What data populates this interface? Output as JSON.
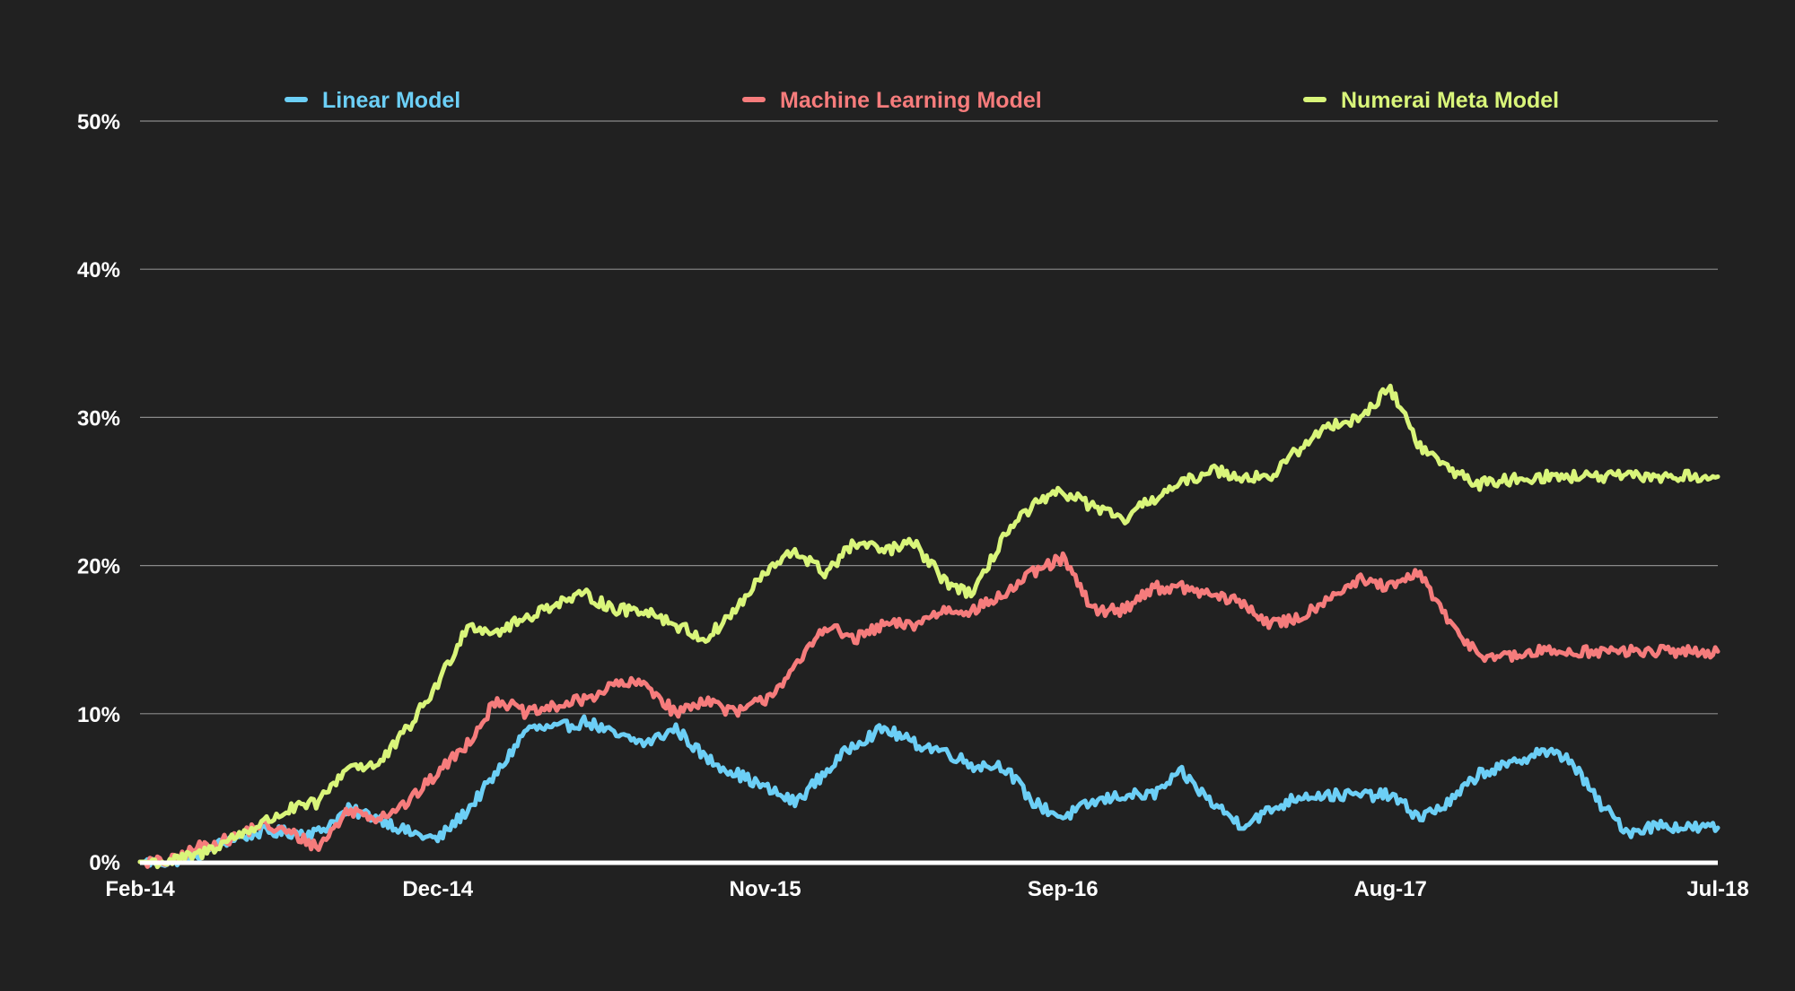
{
  "chart_data": {
    "type": "line",
    "title": "",
    "xlabel": "",
    "ylabel": "",
    "ylim": [
      0,
      50
    ],
    "yticks": [
      0,
      10,
      20,
      30,
      40,
      50
    ],
    "ytick_labels": [
      "0%",
      "10%",
      "20%",
      "30%",
      "40%",
      "50%"
    ],
    "xlim": [
      "2014-02",
      "2018-07"
    ],
    "xticks": [
      "2014-02",
      "2014-12",
      "2015-11",
      "2016-09",
      "2017-08",
      "2018-07"
    ],
    "xtick_labels": [
      "Feb-14",
      "Dec-14",
      "Nov-15",
      "Sep-16",
      "Aug-17",
      "Jul-18"
    ],
    "grid": true,
    "legend_position": "top",
    "series": [
      {
        "name": "Linear Model",
        "color": "#6ccff6",
        "x": [
          "2014-02",
          "2014-03",
          "2014-04",
          "2014-05",
          "2014-06",
          "2014-07",
          "2014-08",
          "2014-09",
          "2014-10",
          "2014-11",
          "2014-12",
          "2015-01",
          "2015-02",
          "2015-03",
          "2015-04",
          "2015-05",
          "2015-06",
          "2015-07",
          "2015-08",
          "2015-09",
          "2015-10",
          "2015-11",
          "2015-12",
          "2016-01",
          "2016-02",
          "2016-03",
          "2016-04",
          "2016-05",
          "2016-06",
          "2016-07",
          "2016-08",
          "2016-09",
          "2016-10",
          "2016-11",
          "2016-12",
          "2017-01",
          "2017-02",
          "2017-03",
          "2017-04",
          "2017-05",
          "2017-06",
          "2017-07",
          "2017-08",
          "2017-09",
          "2017-10",
          "2017-11",
          "2017-12",
          "2018-01",
          "2018-02",
          "2018-03",
          "2018-04",
          "2018-05",
          "2018-06",
          "2018-07"
        ],
        "values": [
          0,
          0,
          0.5,
          1.5,
          2,
          2,
          2,
          3.5,
          3,
          2,
          1.5,
          3.5,
          6,
          9,
          9,
          9.5,
          8.5,
          8,
          9,
          7,
          6,
          5,
          4,
          6,
          8,
          9,
          8,
          7.5,
          6.5,
          6.5,
          4,
          3,
          4,
          4.5,
          4.5,
          6,
          4,
          2.5,
          3.5,
          4.5,
          4.5,
          4.5,
          4.5,
          3,
          4,
          6,
          6.5,
          7.5,
          7,
          4,
          2,
          2.5,
          2.3,
          2.3
        ]
      },
      {
        "name": "Machine Learning Model",
        "color": "#f67c7c",
        "x": [
          "2014-02",
          "2014-03",
          "2014-04",
          "2014-05",
          "2014-06",
          "2014-07",
          "2014-08",
          "2014-09",
          "2014-10",
          "2014-11",
          "2014-12",
          "2015-01",
          "2015-02",
          "2015-03",
          "2015-04",
          "2015-05",
          "2015-06",
          "2015-07",
          "2015-08",
          "2015-09",
          "2015-10",
          "2015-11",
          "2015-12",
          "2016-01",
          "2016-02",
          "2016-03",
          "2016-04",
          "2016-05",
          "2016-06",
          "2016-07",
          "2016-08",
          "2016-09",
          "2016-10",
          "2016-11",
          "2016-12",
          "2017-01",
          "2017-02",
          "2017-03",
          "2017-04",
          "2017-05",
          "2017-06",
          "2017-07",
          "2017-08",
          "2017-09",
          "2017-10",
          "2017-11",
          "2017-12",
          "2018-01",
          "2018-02",
          "2018-03",
          "2018-04",
          "2018-05",
          "2018-06",
          "2018-07"
        ],
        "values": [
          0,
          0,
          1,
          1.5,
          2.5,
          2,
          1,
          3.5,
          3,
          4,
          6,
          8,
          11,
          10,
          10.5,
          11,
          12,
          12,
          10,
          11,
          10,
          11,
          13,
          16,
          15,
          16,
          16,
          17,
          17,
          18,
          19.5,
          20.5,
          17,
          17,
          18.5,
          18.5,
          18,
          17.5,
          16,
          16.5,
          18,
          19,
          18.5,
          19.5,
          16,
          14,
          13.8,
          14.2,
          14.2,
          14.2,
          14.2,
          14.2,
          14.2,
          14.2
        ]
      },
      {
        "name": "Numerai Meta Model",
        "color": "#d9f57a",
        "x": [
          "2014-02",
          "2014-03",
          "2014-04",
          "2014-05",
          "2014-06",
          "2014-07",
          "2014-08",
          "2014-09",
          "2014-10",
          "2014-11",
          "2014-12",
          "2015-01",
          "2015-02",
          "2015-03",
          "2015-04",
          "2015-05",
          "2015-06",
          "2015-07",
          "2015-08",
          "2015-09",
          "2015-10",
          "2015-11",
          "2015-12",
          "2016-01",
          "2016-02",
          "2016-03",
          "2016-04",
          "2016-05",
          "2016-06",
          "2016-07",
          "2016-08",
          "2016-09",
          "2016-10",
          "2016-11",
          "2016-12",
          "2017-01",
          "2017-02",
          "2017-03",
          "2017-04",
          "2017-05",
          "2017-06",
          "2017-07",
          "2017-08",
          "2017-09",
          "2017-10",
          "2017-11",
          "2017-12",
          "2018-01",
          "2018-02",
          "2018-03",
          "2018-04",
          "2018-05",
          "2018-06",
          "2018-07"
        ],
        "values": [
          0,
          0,
          0.5,
          1.5,
          2.5,
          3.5,
          4,
          6.5,
          6.5,
          9,
          12,
          16,
          15.5,
          16.5,
          17.5,
          18,
          17,
          17,
          16,
          15,
          17,
          19.5,
          21,
          19.5,
          21.5,
          21,
          21.5,
          19,
          18,
          22,
          24,
          25,
          24,
          23,
          24.5,
          25.5,
          26.5,
          26,
          26,
          28,
          29.5,
          30,
          32,
          28,
          26.5,
          25.5,
          25.8,
          26,
          26,
          26,
          26,
          26,
          26,
          26
        ]
      }
    ]
  }
}
